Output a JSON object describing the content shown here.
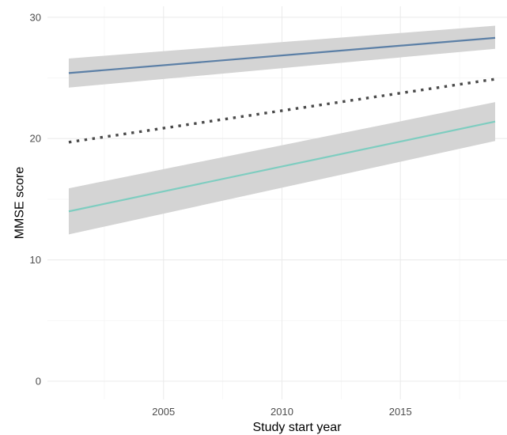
{
  "chart_data": {
    "type": "line",
    "xlabel": "Study start year",
    "ylabel": "MMSE score",
    "xlim": [
      2000.1,
      2019.5
    ],
    "ylim": [
      -1.5,
      30.9
    ],
    "x_ticks": [
      2005,
      2010,
      2015
    ],
    "x_tick_labels": [
      "2005",
      "2010",
      "2015"
    ],
    "y_ticks": [
      0,
      10,
      20,
      30
    ],
    "y_tick_labels": [
      "0",
      "10",
      "20",
      "30"
    ],
    "grid": true,
    "legend": "none",
    "series": [
      {
        "x": [
          2001,
          2019
        ],
        "y": [
          25.4,
          28.3
        ],
        "ci_lower": [
          24.2,
          27.4
        ],
        "ci_upper": [
          26.6,
          29.3
        ],
        "line_style": "solid",
        "color": "#5b7fa6",
        "band_color": "#d4d4d4"
      },
      {
        "x": [
          2001,
          2019
        ],
        "y": [
          19.7,
          24.9
        ],
        "line_style": "dotted",
        "color": "#4a4a4a"
      },
      {
        "x": [
          2001,
          2019
        ],
        "y": [
          14.0,
          21.4
        ],
        "ci_lower": [
          12.1,
          19.8
        ],
        "ci_upper": [
          15.9,
          23.0
        ],
        "line_style": "solid",
        "color": "#7ecdc0",
        "band_color": "#d4d4d4"
      }
    ]
  }
}
